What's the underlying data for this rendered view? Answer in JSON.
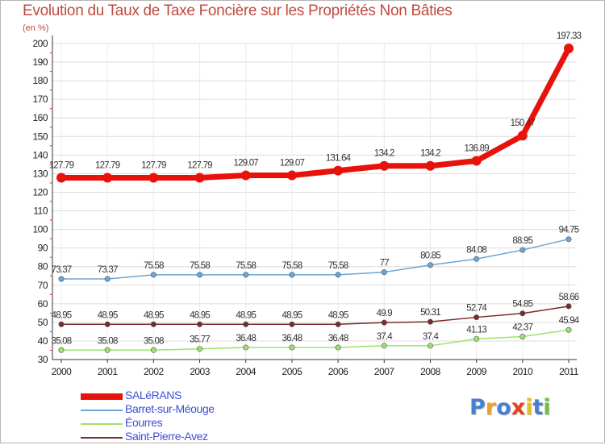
{
  "chart_data": {
    "type": "line",
    "title": "Evolution du Taux de Taxe Foncière sur les Propriétés Non Bâties",
    "unit_label": "(en %)",
    "xlabel": "",
    "ylabel": "",
    "ylim": [
      30,
      200
    ],
    "yticks": [
      30,
      40,
      50,
      60,
      70,
      80,
      90,
      100,
      110,
      120,
      130,
      140,
      150,
      160,
      170,
      180,
      190,
      200
    ],
    "categories": [
      "2000",
      "2001",
      "2002",
      "2003",
      "2004",
      "2005",
      "2006",
      "2007",
      "2008",
      "2009",
      "2010",
      "2011"
    ],
    "series": [
      {
        "name": "SALéRANS",
        "color": "#e8120c",
        "values": [
          127.79,
          127.79,
          127.79,
          127.79,
          129.07,
          129.07,
          131.64,
          134.2,
          134.2,
          136.89,
          150.47,
          197.33
        ],
        "labels": [
          "127.79",
          "127.79",
          "127.79",
          "127.79",
          "129.07",
          "129.07",
          "131.64",
          "134.2",
          "134.2",
          "136.89",
          "150.47",
          "197.33"
        ]
      },
      {
        "name": "Barret-sur-Méouge",
        "color": "#6aa6d8",
        "values": [
          73.37,
          73.37,
          75.58,
          75.58,
          75.58,
          75.58,
          75.58,
          77,
          80.85,
          84.08,
          88.95,
          94.75
        ],
        "labels": [
          "73.37",
          "73.37",
          "75.58",
          "75.58",
          "75.58",
          "75.58",
          "75.58",
          "77",
          "80.85",
          "84.08",
          "88.95",
          "94.75"
        ]
      },
      {
        "name": "Éourres",
        "color": "#9be36a",
        "values": [
          35.08,
          35.08,
          35.08,
          35.77,
          36.48,
          36.48,
          36.48,
          37.4,
          37.4,
          41.13,
          42.37,
          45.94
        ],
        "labels": [
          "35.08",
          "35.08",
          "35.08",
          "35.77",
          "36.48",
          "36.48",
          "36.48",
          "37.4",
          "37.4",
          "41.13",
          "42.37",
          "45.94"
        ]
      },
      {
        "name": "Saint-Pierre-Avez",
        "color": "#7a2a2a",
        "values": [
          48.95,
          48.95,
          48.95,
          48.95,
          48.95,
          48.95,
          48.95,
          49.9,
          50.31,
          52.74,
          54.85,
          58.66
        ],
        "labels": [
          "48.95",
          "48.95",
          "48.95",
          "48.95",
          "48.95",
          "48.95",
          "48.95",
          "49.9",
          "50.31",
          "52.74",
          "54.85",
          "58.66"
        ]
      }
    ],
    "legend": {
      "position": "bottom-left",
      "items": [
        "SALéRANS",
        "Barret-sur-Méouge",
        "Éourres",
        "Saint-Pierre-Avez"
      ]
    },
    "grid": true
  },
  "logo": {
    "text": "Proxiti",
    "letter_colors": [
      "#4a7fd0",
      "#f0a020",
      "#4a7fd0",
      "#e8401c",
      "#e8c020",
      "#4a7fd0",
      "#6fc040"
    ]
  },
  "colors": {
    "title": "#c04a3f",
    "grid": "#dcdcdc",
    "axis": "#333333",
    "tick_text": "#222222",
    "minor_tick": "#e31c1c"
  }
}
